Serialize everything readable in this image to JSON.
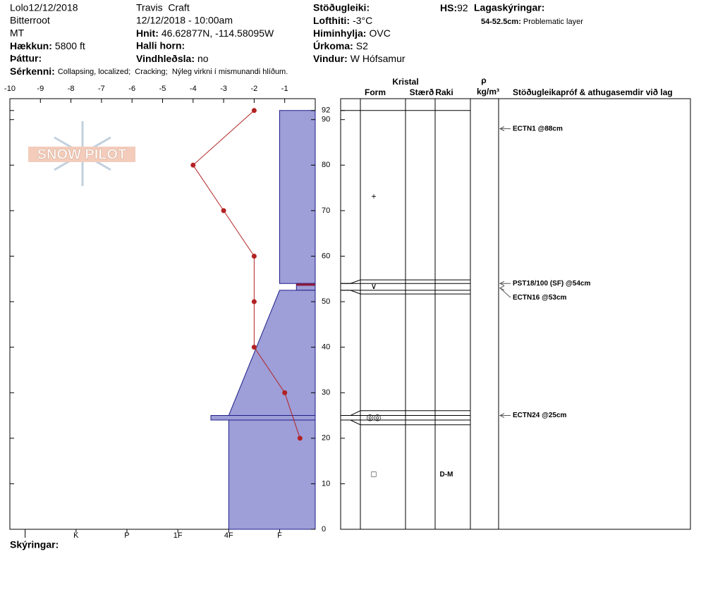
{
  "header": {
    "location": "Lolo12/12/2018",
    "range": "Bitterroot",
    "state": "MT",
    "elevation": {
      "label": "Hækkun:",
      "value": "5800 ft"
    },
    "aspect_label": "Þáttur:",
    "observer": "Travis  Craft",
    "datetime": "12/12/2018 - 10:00am",
    "coords": {
      "label": "Hnit:",
      "value": "46.62877N, -114.58095W"
    },
    "slope_label": "Halli horn:",
    "wind_loading": {
      "label": "Vindhleðsla:",
      "value": "no"
    },
    "stability_label": "Stöðugleiki:",
    "air_temp": {
      "label": "Lofthiti:",
      "value": "-3°C"
    },
    "sky": {
      "label": "Himinhylja:",
      "value": "OVC"
    },
    "precip": {
      "label": "Úrkoma:",
      "value": "S2"
    },
    "wind": {
      "label": "Vindur:",
      "value": "W Hófsamur"
    },
    "hs": {
      "label": "HS:",
      "value": "92"
    },
    "legend_title": "Lagaskýringar:",
    "legend_note": {
      "range": "54-52.5cm:",
      "text": "Problematic layer"
    },
    "features": {
      "label": "Sérkenni:",
      "value": "Collapsing, localized;  Cracking;  Nýleg virkni í mismunandi hlíðum."
    },
    "comments_label": "Skýringar:",
    "logo": "SNOW PILOT"
  },
  "chart_data": {
    "type": "snow_profile",
    "xlim": [
      -10,
      0
    ],
    "xticks": [
      -10,
      -9,
      -8,
      -7,
      -6,
      -5,
      -4,
      -3,
      -2,
      -1
    ],
    "ylim": [
      0,
      94.6
    ],
    "yticks": [
      0,
      10,
      20,
      30,
      40,
      50,
      60,
      70,
      80,
      90,
      92
    ],
    "hardness_lim": [
      6.3,
      0.3
    ],
    "hardness_ticks": [
      {
        "value": 6,
        "label": "I"
      },
      {
        "value": 5,
        "label": "K"
      },
      {
        "value": 4,
        "label": "P"
      },
      {
        "value": 3,
        "label": "1F"
      },
      {
        "value": 2,
        "label": "4F"
      },
      {
        "value": 1,
        "label": "F"
      }
    ],
    "temperature": {
      "color": "#b22222",
      "heights": [
        92,
        80,
        70,
        60,
        50,
        40,
        30,
        20
      ],
      "values": [
        -2,
        -4,
        -3,
        -2,
        -2,
        -2,
        -1,
        -0.5
      ]
    },
    "layer_color": "#9e9ed8",
    "problem_color": "#8b1a3a",
    "problem_layer": {
      "top": 54,
      "bottom": 52.5
    },
    "layers": [
      {
        "top": 92,
        "bottom": 54,
        "hardness_top": 1,
        "hardness_bottom": 1,
        "form": "+"
      },
      {
        "top": 54,
        "bottom": 52.5,
        "hardness_top": 0.67,
        "hardness_bottom": 0.67,
        "form": "∨"
      },
      {
        "top": 52.5,
        "bottom": 25,
        "hardness_top": 1,
        "hardness_bottom": 2
      },
      {
        "top": 25,
        "bottom": 24,
        "hardness_top": 2.35,
        "hardness_bottom": 2.35,
        "form": "◎◎"
      },
      {
        "top": 24,
        "bottom": 0,
        "hardness_top": 2,
        "hardness_bottom": 2,
        "form": "□",
        "moisture": "D-M"
      }
    ],
    "columns": {
      "crystal": "Kristal",
      "form": "Form",
      "size": "Stærð",
      "moisture": "Raki",
      "density": "ρ",
      "density_unit": "kg/m³",
      "tests": "Stöðugleikapróf & athugasemdir við lag"
    },
    "tests": [
      {
        "label": "ECTN1 @88cm",
        "depth": 88
      },
      {
        "label": "PST18/100 (SF) @54cm",
        "depth": 54
      },
      {
        "label": "ECTN16 @53cm",
        "depth": 53
      },
      {
        "label": "ECTN24 @25cm",
        "depth": 25
      }
    ]
  }
}
